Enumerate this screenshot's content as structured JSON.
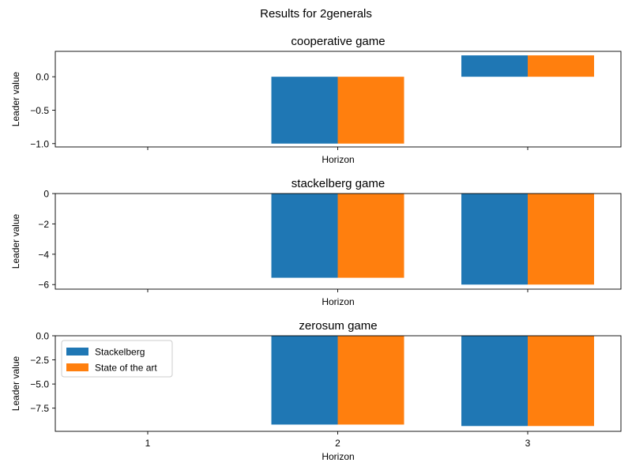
{
  "figure": {
    "suptitle": "Results for 2generals"
  },
  "chart_data": [
    {
      "type": "bar",
      "title": "cooperative game",
      "xlabel": "Horizon",
      "ylabel": "Leader value",
      "categories": [
        "1",
        "2",
        "3"
      ],
      "show_xticklabels": false,
      "ylim": [
        -1.05,
        0.38
      ],
      "yticks": [
        0.0,
        -0.5,
        -1.0
      ],
      "yticklabels": [
        "0.0",
        "−0.5",
        "−1.0"
      ],
      "series": [
        {
          "name": "Stackelberg",
          "values": [
            0,
            -1.0,
            0.32
          ]
        },
        {
          "name": "State of the art",
          "values": [
            0,
            -1.0,
            0.32
          ]
        }
      ],
      "legend": null
    },
    {
      "type": "bar",
      "title": "stackelberg game",
      "xlabel": "Horizon",
      "ylabel": "Leader value",
      "categories": [
        "1",
        "2",
        "3"
      ],
      "show_xticklabels": false,
      "ylim": [
        -6.3,
        0.0
      ],
      "yticks": [
        0,
        -2,
        -4,
        -6
      ],
      "yticklabels": [
        "0",
        "−2",
        "−4",
        "−6"
      ],
      "series": [
        {
          "name": "Stackelberg",
          "values": [
            0,
            -5.55,
            -6.0
          ]
        },
        {
          "name": "State of the art",
          "values": [
            0,
            -5.55,
            -6.0
          ]
        }
      ],
      "legend": null
    },
    {
      "type": "bar",
      "title": "zerosum game",
      "xlabel": "Horizon",
      "ylabel": "Leader value",
      "categories": [
        "1",
        "2",
        "3"
      ],
      "show_xticklabels": true,
      "ylim": [
        -9.9,
        0.0
      ],
      "yticks": [
        0.0,
        -2.5,
        -5.0,
        -7.5
      ],
      "yticklabels": [
        "0.0",
        "−2.5",
        "−5.0",
        "−7.5"
      ],
      "series": [
        {
          "name": "Stackelberg",
          "values": [
            0,
            -9.2,
            -9.35
          ]
        },
        {
          "name": "State of the art",
          "values": [
            0,
            -9.2,
            -9.35
          ]
        }
      ],
      "legend": "upper left"
    }
  ],
  "colors": {
    "Stackelberg": "#1f77b4",
    "State of the art": "#ff7f0e"
  }
}
